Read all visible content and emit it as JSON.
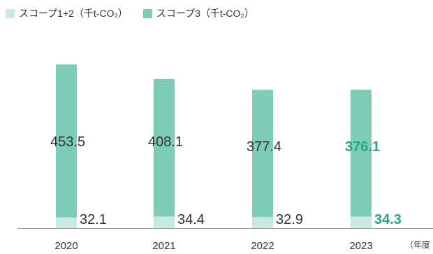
{
  "chart_data": {
    "type": "bar",
    "stacked": true,
    "categories": [
      "2020",
      "2021",
      "2022",
      "2023"
    ],
    "series": [
      {
        "name": "スコープ1+2（千t-CO₂）",
        "values": [
          32.1,
          34.4,
          32.9,
          34.3
        ],
        "color": "#c8e9e0"
      },
      {
        "name": "スコープ3（千t-CO₂）",
        "values": [
          453.5,
          408.1,
          377.4,
          376.1
        ],
        "color": "#7dccb8"
      }
    ],
    "x_unit_label": "（年度",
    "highlight_category": "2023",
    "highlight_color": "#1fa886",
    "label_color": "#333333",
    "axis_color": "#999999",
    "ylim": [
      0,
      490
    ],
    "legend_position": "top-left",
    "grid": false
  }
}
